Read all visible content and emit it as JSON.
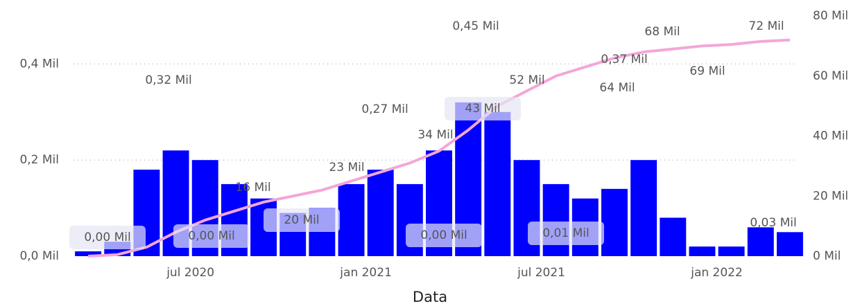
{
  "chart_data": {
    "type": "bar_line",
    "x_label": "Data",
    "x": [
      "2020-03",
      "2020-04",
      "2020-05",
      "2020-06",
      "2020-07",
      "2020-08",
      "2020-09",
      "2020-10",
      "2020-11",
      "2020-12",
      "2021-01",
      "2021-02",
      "2021-03",
      "2021-04",
      "2021-05",
      "2021-06",
      "2021-07",
      "2021-08",
      "2021-09",
      "2021-10",
      "2021-11",
      "2021-12",
      "2022-01",
      "2022-02",
      "2022-03"
    ],
    "series": [
      {
        "color": "#0000ff",
        "values": [
          0.01,
          0.03,
          0.18,
          0.22,
          0.2,
          0.15,
          0.12,
          0.09,
          0.1,
          0.15,
          0.18,
          0.15,
          0.22,
          0.32,
          0.3,
          0.2,
          0.15,
          0.12,
          0.14,
          0.2,
          0.08,
          0.02,
          0.02,
          0.06,
          0.05
        ]
      },
      {
        "color": "#f4a6d7",
        "axis": "y2",
        "values": [
          0,
          0.5,
          3,
          8,
          12,
          15,
          18,
          20,
          22,
          25,
          28,
          31,
          35,
          42,
          50,
          55,
          60,
          63,
          66,
          68,
          69,
          70,
          70.5,
          71.5,
          72
        ]
      }
    ],
    "xlim": [
      "2020-03",
      "2022-04"
    ],
    "xticks": [
      {
        "value": "2020-07",
        "label": "jul 2020"
      },
      {
        "value": "2021-01",
        "label": "jan 2021"
      },
      {
        "value": "2021-07",
        "label": "jul 2021"
      },
      {
        "value": "2022-01",
        "label": "jan 2022"
      }
    ],
    "ylim": [
      0,
      0.5
    ],
    "yticks": [
      {
        "value": 0,
        "label": "0,0 Mil"
      },
      {
        "value": 0.2,
        "label": "0,2 Mil"
      },
      {
        "value": 0.4,
        "label": "0,4 Mil"
      }
    ],
    "y2lim": [
      0,
      80
    ],
    "y2ticks": [
      {
        "value": 0,
        "label": "0 Mil"
      },
      {
        "value": 20,
        "label": "20 Mil"
      },
      {
        "value": 40,
        "label": "40 Mil"
      },
      {
        "value": 60,
        "label": "60 Mil"
      },
      {
        "value": 80,
        "label": "80 Mil"
      }
    ],
    "grid": true,
    "annotations": [
      "0,00 Mil",
      "0,32 Mil",
      "16 Mil",
      "0,00 Mil",
      "20 Mil",
      "23 Mil",
      "0,27 Mil",
      "34 Mil",
      "0,45 Mil",
      "43 Mil",
      "0,00 Mil",
      "52 Mil",
      "0,01 Mil",
      "64 Mil",
      "0,37 Mil",
      "68 Mil",
      "69 Mil",
      "72 Mil",
      "0,03 Mil"
    ]
  }
}
